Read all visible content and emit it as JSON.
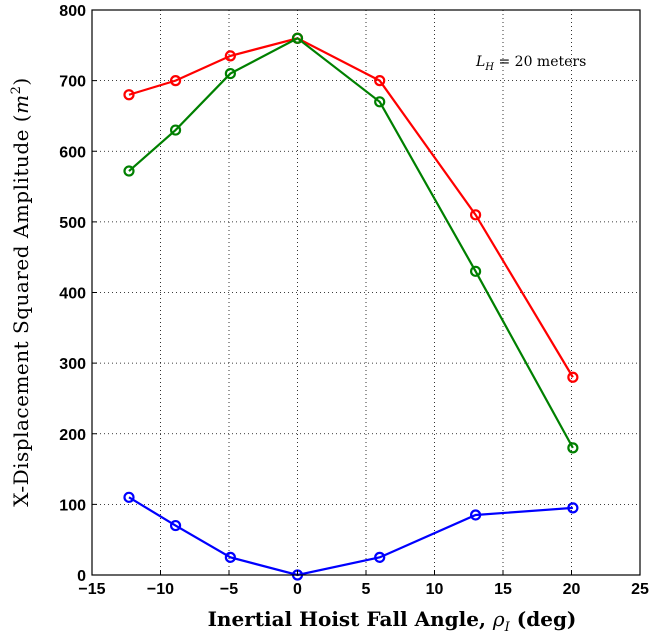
{
  "chart_data": {
    "type": "line",
    "xlabel_text": "Inertial Hoist Fall Angle, ",
    "xlabel_symbol": "ρ",
    "xlabel_sub": "I",
    "xlabel_unit": " (deg)",
    "ylabel_text": "X-Displacement Squared Amplitude (",
    "ylabel_symbol": "m",
    "ylabel_sup": "2",
    "ylabel_close": ")",
    "annotation_symbol": "L",
    "annotation_sub": "H",
    "annotation_text": " = 20 meters",
    "xlim": [
      -15,
      25
    ],
    "ylim": [
      0,
      800
    ],
    "xticks": [
      -15,
      -10,
      -5,
      0,
      5,
      10,
      15,
      20,
      25
    ],
    "yticks": [
      0,
      100,
      200,
      300,
      400,
      500,
      600,
      700,
      800
    ],
    "xtick_labels": [
      "−15",
      "−10",
      "−5",
      "0",
      "5",
      "10",
      "15",
      "20",
      "25"
    ],
    "ytick_labels": [
      "0",
      "100",
      "200",
      "300",
      "400",
      "500",
      "600",
      "700",
      "800"
    ],
    "grid": true,
    "x": [
      -12.3,
      -8.9,
      -4.9,
      0,
      6,
      13,
      20.1
    ],
    "series": [
      {
        "color": "#ff0000",
        "values": [
          680,
          700,
          735,
          760,
          700,
          510,
          280
        ]
      },
      {
        "color": "#008000",
        "values": [
          572,
          630,
          710,
          760,
          670,
          430,
          180
        ]
      },
      {
        "color": "#0000ff",
        "values": [
          110,
          70,
          25,
          0,
          25,
          85,
          95
        ]
      }
    ]
  }
}
